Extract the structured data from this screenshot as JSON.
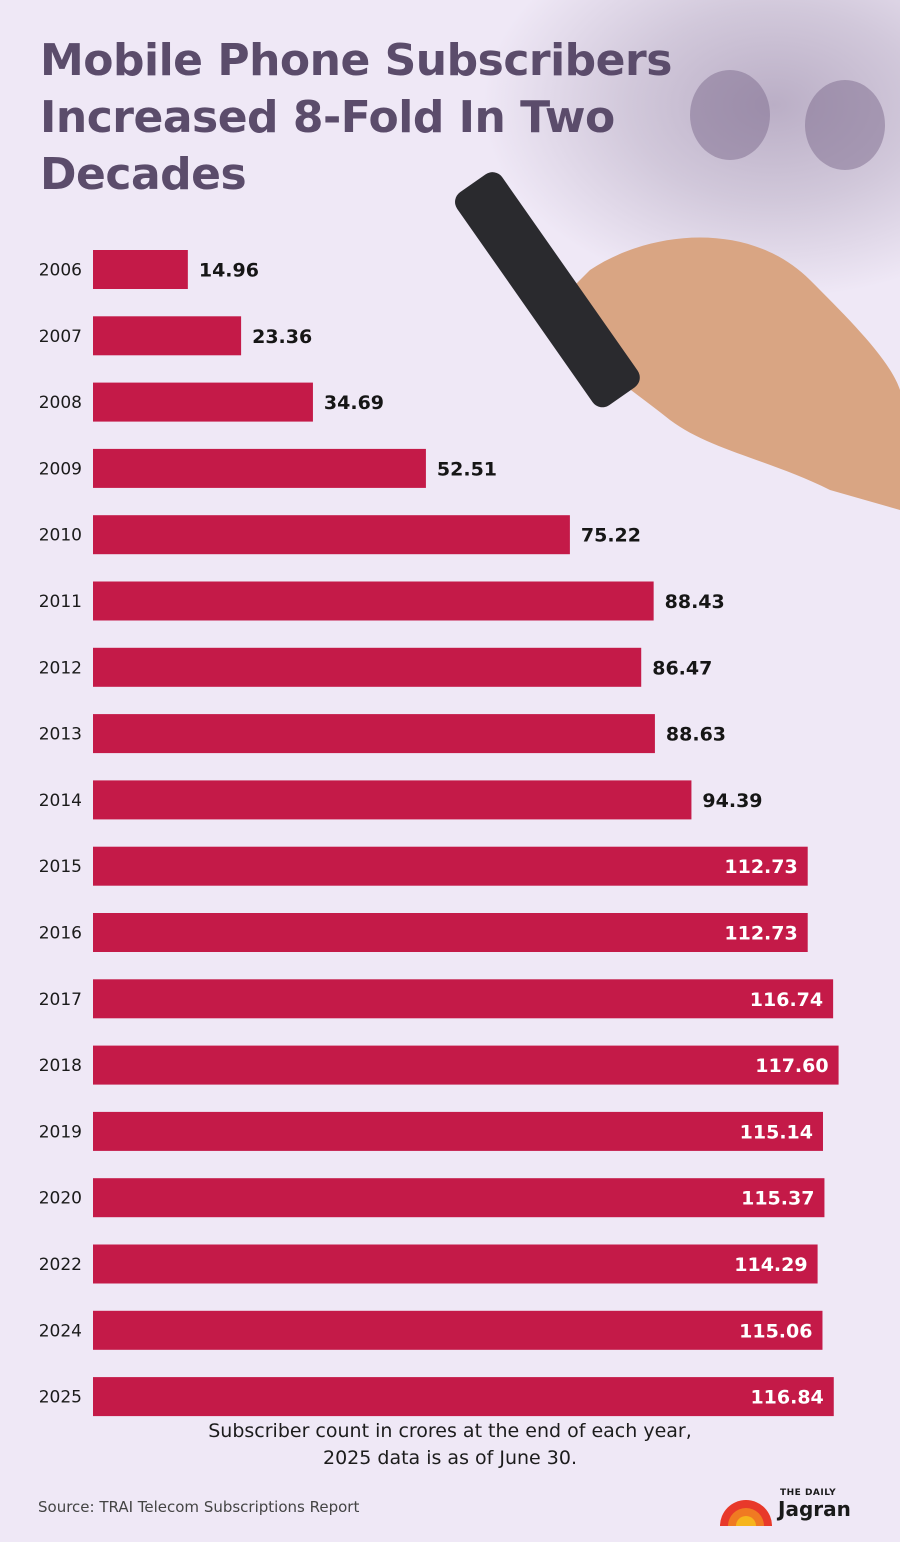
{
  "title": "Mobile Phone Subscribers Increased 8-Fold In Two Decades",
  "note_line1": "Subscriber count in crores at the end of each year,",
  "note_line2": "2025 data is as of June 30.",
  "source": "Source: TRAI Telecom Subscriptions Report",
  "logo": {
    "small": "THE DAILY",
    "big": "Jagran"
  },
  "colors": {
    "bar": "#c41a48",
    "background": "#efe8f6",
    "title": "#5b4c6b"
  },
  "chart_data": {
    "type": "bar",
    "orientation": "horizontal",
    "title": "Mobile Phone Subscribers Increased 8-Fold In Two Decades",
    "xlabel": "",
    "ylabel": "",
    "categories": [
      "2006",
      "2007",
      "2008",
      "2009",
      "2010",
      "2011",
      "2012",
      "2013",
      "2014",
      "2015",
      "2016",
      "2017",
      "2018",
      "2019",
      "2020",
      "2022",
      "2024",
      "2025"
    ],
    "values": [
      14.96,
      23.36,
      34.69,
      52.51,
      75.22,
      88.43,
      86.47,
      88.63,
      94.39,
      112.73,
      112.73,
      116.74,
      117.6,
      115.14,
      115.37,
      114.29,
      115.06,
      116.84
    ],
    "value_labels": [
      "14.96",
      "23.36",
      "34.69",
      "52.51",
      "75.22",
      "88.43",
      "86.47",
      "88.63",
      "94.39",
      "112.73",
      "112.73",
      "116.74",
      "117.60",
      "115.14",
      "115.37",
      "114.29",
      "115.06",
      "116.84"
    ],
    "grid": false,
    "legend": "none"
  }
}
